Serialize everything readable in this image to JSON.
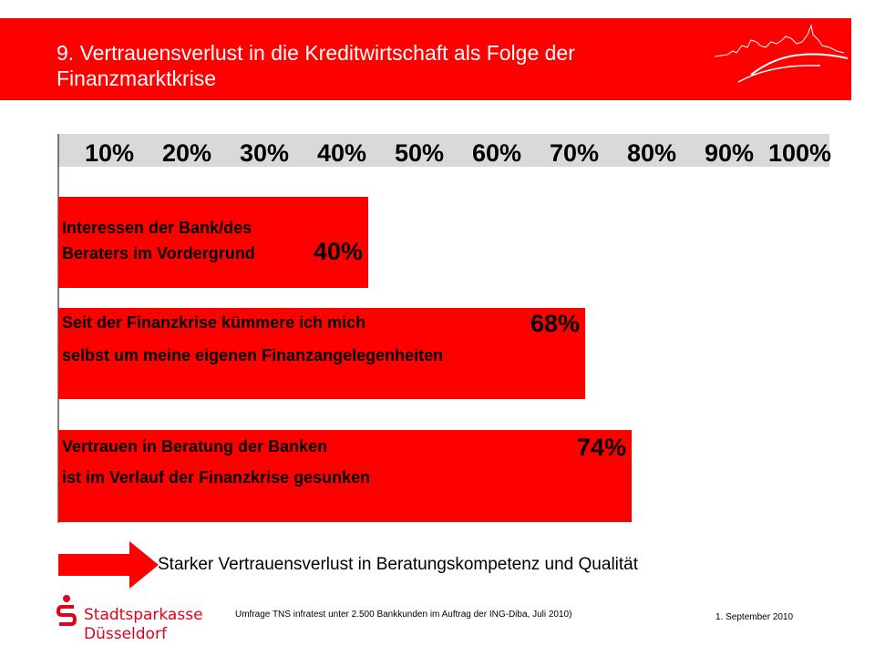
{
  "header": {
    "title_line1": "9. Vertrauensverlust in die Kreditwirtschaft als Folge der",
    "title_line2": "Finanzmarktkrise"
  },
  "colors": {
    "brand_red": "#ff0000",
    "logo_red": "#e2001a",
    "scale_band": "#d9d9d9"
  },
  "chart_data": {
    "type": "bar",
    "orientation": "horizontal",
    "scale_labels": [
      "10%",
      "20%",
      "30%",
      "40%",
      "50%",
      "60%",
      "70%",
      "80%",
      "90%",
      "100%"
    ],
    "xlim": [
      0,
      100
    ],
    "bars": [
      {
        "label_lines": [
          "Interessen der Bank/des",
          "Beraters im Vordergrund"
        ],
        "value": 40,
        "value_label": "40%"
      },
      {
        "label_lines": [
          "Seit der Finanzkrise kümmere ich mich",
          "selbst um meine eigenen Finanzangelegenheiten"
        ],
        "value": 68,
        "value_label": "68%"
      },
      {
        "label_lines": [
          "Vertrauen in Beratung der Banken",
          "ist im Verlauf der Finanzkrise gesunken"
        ],
        "value": 74,
        "value_label": "74%"
      }
    ]
  },
  "conclusion": {
    "arrow_icon": "right-arrow-icon",
    "text": "Starker Vertrauensverlust in Beratungskompetenz und Qualität"
  },
  "footer": {
    "logo_line1": "Stadtsparkasse",
    "logo_line2": "Düsseldorf",
    "source": "Umfrage TNS infratest unter 2.500 Bankkunden im Auftrag der ING-Diba, Juli 2010)",
    "date": "1. September 2010"
  }
}
